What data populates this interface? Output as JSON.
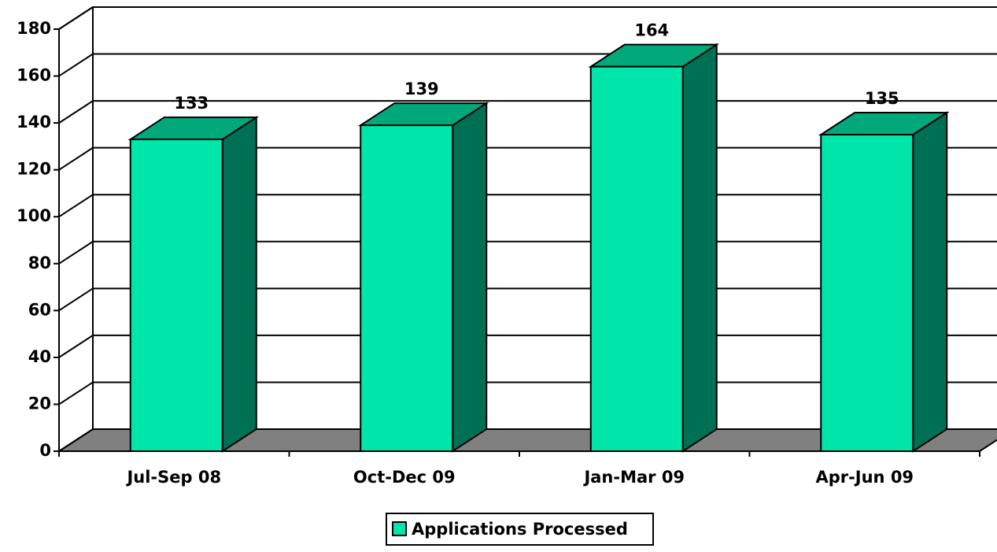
{
  "chart_data": {
    "type": "bar3d",
    "categories": [
      "Jul-Sep 08",
      "Oct-Dec 09",
      "Jan-Mar 09",
      "Apr-Jun 09"
    ],
    "series": [
      {
        "name": "Applications Processed",
        "color": "#00e6aa",
        "values": [
          133,
          139,
          164,
          135
        ]
      }
    ],
    "ylim": [
      0,
      180
    ],
    "yticks": [
      0,
      20,
      40,
      60,
      80,
      100,
      120,
      140,
      160,
      180
    ],
    "grid": true,
    "legend": "bottom"
  }
}
